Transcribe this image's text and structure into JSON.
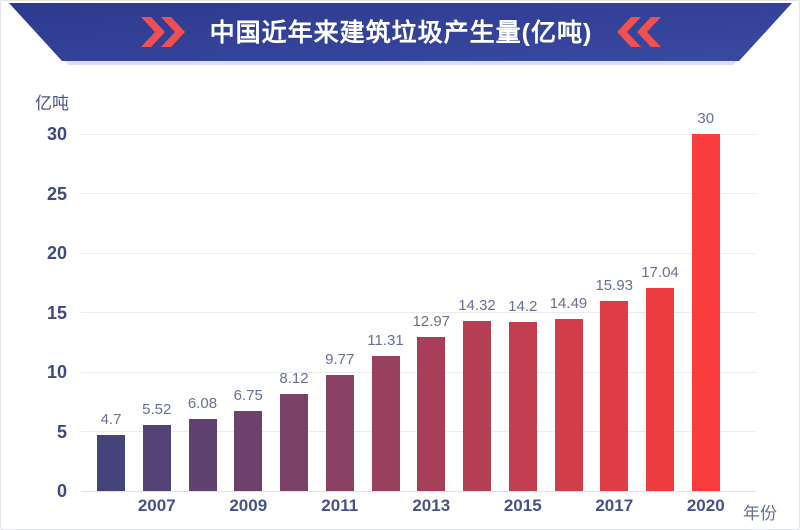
{
  "banner": {
    "title": "中国近年来建筑垃圾产生量(亿吨)",
    "bg_color_top": "#2c3a8e",
    "bg_color_bottom": "#3a49a2",
    "shadow_color": "#d9dff1",
    "chevron_color": "#f25050",
    "title_color": "#ffffff"
  },
  "chart_data": {
    "type": "bar",
    "title": "中国近年来建筑垃圾产生量(亿吨)",
    "ylabel": "亿吨",
    "xlabel": "年份",
    "ylim": [
      0,
      30
    ],
    "yticks": [
      0,
      5,
      10,
      15,
      20,
      25,
      30
    ],
    "grid": true,
    "legend": "none",
    "categories": [
      "",
      "2007",
      "",
      "2009",
      "",
      "2011",
      "",
      "2013",
      "",
      "2015",
      "",
      "2017",
      "",
      "2020"
    ],
    "values": [
      4.7,
      5.52,
      6.08,
      6.75,
      8.12,
      9.77,
      11.31,
      12.97,
      14.32,
      14.2,
      14.49,
      15.93,
      17.04,
      30
    ],
    "bar_color_start": "#44437a",
    "bar_color_end": "#fb3c3c"
  },
  "colors": {
    "gridline": "#ebecf2",
    "axis_line": "#e2e3ea",
    "ytick_text": "#3e4a82",
    "xtick_text": "#48528a",
    "value_text": "#687095",
    "ylabel_text": "#49548a",
    "xlabel_text": "#6a7294"
  }
}
